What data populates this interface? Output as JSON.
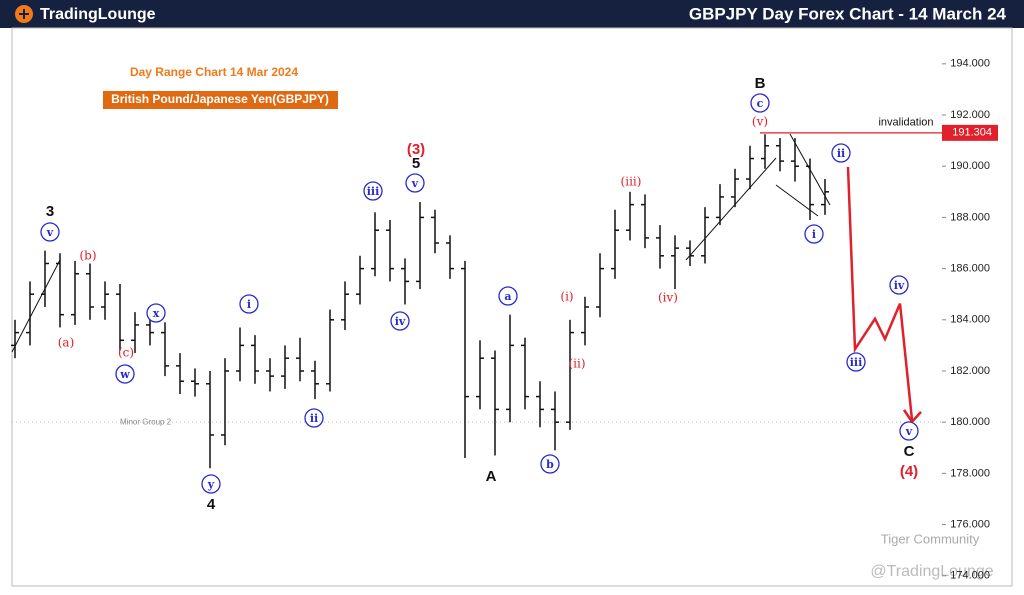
{
  "brand": "TradingLounge",
  "chart_data": {
    "type": "ohlc",
    "title": "GBPJPY Day Forex Chart - 14 March 24",
    "subtitle": "Day Range Chart 14 Mar 2024",
    "instrument": "British Pound/Japanese Yen(GBPJPY)",
    "color": "#111111",
    "open": [
      183,
      183.5,
      185,
      186.2,
      184.2,
      185.8,
      184.5,
      185,
      183.2,
      183.8,
      183.5,
      182.2,
      181.6,
      181.5,
      179.5,
      182,
      183,
      182,
      181.8,
      182.5,
      182,
      181.5,
      184,
      185,
      186,
      187.5,
      186,
      185.5,
      188,
      187,
      186,
      181,
      182.5,
      180.5,
      183,
      181,
      180.5,
      180,
      183.5,
      184.5,
      186,
      187.5,
      188.5,
      187.2,
      186.5,
      186.8,
      186.5,
      188,
      188.8,
      189.5,
      190.3,
      190.8,
      190.2,
      190,
      188.5
    ],
    "high": [
      184,
      185.5,
      186.7,
      186.6,
      186.3,
      186.2,
      185.5,
      185.4,
      184.3,
      184.3,
      183.9,
      182.7,
      182.1,
      182,
      182.5,
      183.7,
      183.4,
      182.5,
      183,
      183.3,
      182.4,
      184.4,
      185.5,
      186.5,
      188.2,
      187.9,
      186.4,
      188.6,
      188.3,
      187.3,
      186.3,
      183.2,
      182.8,
      184.2,
      183.3,
      181.6,
      181.2,
      184,
      184.9,
      186.6,
      188.3,
      189,
      188.9,
      187.7,
      187.3,
      187.1,
      188.4,
      189.3,
      189.9,
      190.8,
      191.25,
      191.1,
      191.1,
      190.3,
      189.5
    ],
    "low": [
      182.5,
      183,
      184.5,
      183.7,
      183.8,
      184,
      184,
      182.8,
      182.7,
      183,
      181.8,
      181.1,
      181,
      178.2,
      179.1,
      181.6,
      181.5,
      181.2,
      181.3,
      181.6,
      180.9,
      181.2,
      183.6,
      184.6,
      185.7,
      185.5,
      184.6,
      185.2,
      186.6,
      185.6,
      178.6,
      180.5,
      178.7,
      180,
      180.5,
      179.8,
      178.9,
      179.7,
      183,
      184.1,
      185.6,
      187.1,
      186.8,
      186,
      185.2,
      186.1,
      186.2,
      187.7,
      188.4,
      189.1,
      189.9,
      189.8,
      189.4,
      187.9,
      188.1
    ],
    "close": [
      183.5,
      185,
      186.2,
      184.2,
      185.8,
      184.5,
      185,
      183.2,
      183.8,
      183.5,
      182.2,
      181.6,
      181.5,
      179.5,
      182,
      183,
      182,
      181.8,
      182.5,
      182,
      181.5,
      184,
      185,
      186,
      187.5,
      186,
      185.5,
      188,
      187,
      186,
      181,
      182.5,
      180.5,
      183,
      181,
      180.5,
      180,
      183.5,
      184.5,
      186,
      187.5,
      188.5,
      187.2,
      186.5,
      186.8,
      186.5,
      188,
      188.8,
      189.5,
      190.3,
      190.8,
      190.2,
      190,
      188.5,
      189
    ],
    "projection": {
      "color": "#e0202a",
      "values": [
        189.97,
        182.85,
        184.04,
        183.25,
        184.63,
        180.09
      ]
    },
    "invalidation": {
      "label": "invalidation",
      "value": 191.304,
      "value_label": "191.304",
      "color": "#e0202a"
    },
    "minor_group": {
      "label": "Minor Group 2",
      "value": 180
    },
    "wave_labels": [
      "3",
      "v",
      "(b)",
      "(a)",
      "(c)",
      "x",
      "w",
      "y",
      "4",
      "i",
      "ii",
      "iii",
      "iv",
      "v",
      "5",
      "(3)",
      "A",
      "a",
      "b",
      "(i)",
      "(ii)",
      "(iii)",
      "(iv)",
      "B",
      "c",
      "(v)",
      "ii",
      "i",
      "iv",
      "iii",
      "v",
      "C",
      "(4)"
    ],
    "ylim": [
      173.6,
      195.4
    ],
    "yticks": [
      {
        "value": 174,
        "label": "174.000"
      },
      {
        "value": 176,
        "label": "176.000"
      },
      {
        "value": 178,
        "label": "178.000"
      },
      {
        "value": 180,
        "label": "180.000"
      },
      {
        "value": 182,
        "label": "182.000"
      },
      {
        "value": 184,
        "label": "184.000"
      },
      {
        "value": 186,
        "label": "186.000"
      },
      {
        "value": 188,
        "label": "188.000"
      },
      {
        "value": 190,
        "label": "190.000"
      },
      {
        "value": 192,
        "label": "192.000"
      },
      {
        "value": 194,
        "label": "194.000"
      }
    ]
  },
  "watermarks": [
    "Tiger Community",
    "@TradingLounge"
  ]
}
